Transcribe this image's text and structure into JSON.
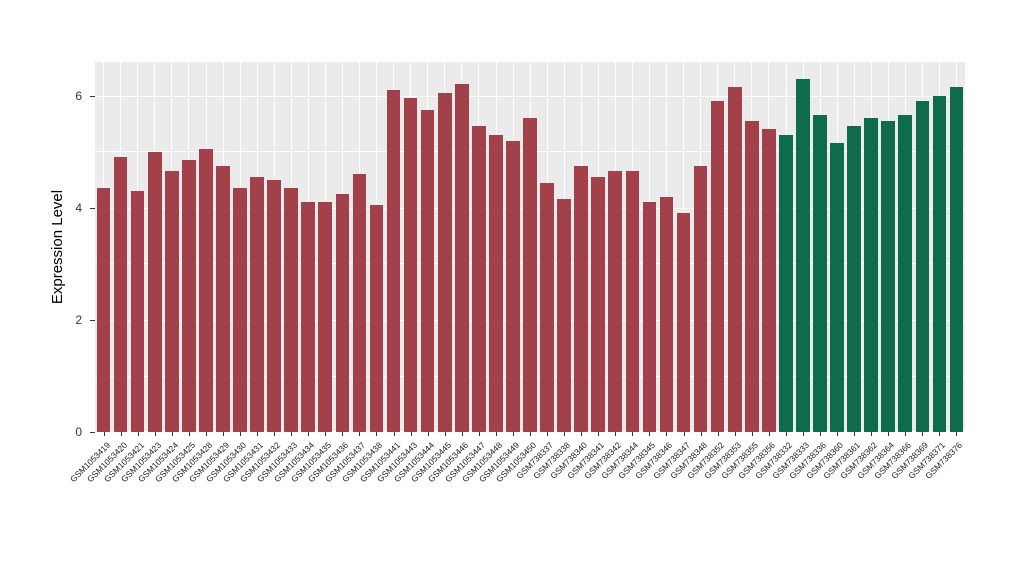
{
  "figure": {
    "background": "#FFFFFF",
    "panel_background": "#EBEBEB",
    "gridline_color": "#FFFFFF",
    "axis_text_color": "#333333",
    "tick_color": "#333333"
  },
  "chart_data": {
    "type": "bar",
    "title": "",
    "xlabel": "",
    "ylabel": "Expression Level",
    "ylim": [
      0,
      6.6
    ],
    "yticks": [
      0,
      2,
      4,
      6
    ],
    "yminor": [
      1,
      3,
      5
    ],
    "grid": true,
    "legend": "none",
    "series": [
      {
        "name": "group-red",
        "color": "#A3414B",
        "categories": [
          "GSM1053419",
          "GSM1053420",
          "GSM1053421",
          "GSM1053423",
          "GSM1053424",
          "GSM1053425",
          "GSM1053428",
          "GSM1053429",
          "GSM1053430",
          "GSM1053431",
          "GSM1053432",
          "GSM1053433",
          "GSM1053434",
          "GSM1053435",
          "GSM1053436",
          "GSM1053437",
          "GSM1053438",
          "GSM1053441",
          "GSM1053443",
          "GSM1053444",
          "GSM1053445",
          "GSM1053446",
          "GSM1053447",
          "GSM1053448",
          "GSM1053449",
          "GSM1053450",
          "GSM738337",
          "GSM738338",
          "GSM738340",
          "GSM738341",
          "GSM738342",
          "GSM738344",
          "GSM738345",
          "GSM738346",
          "GSM738347",
          "GSM738348",
          "GSM738352",
          "GSM738353",
          "GSM738355",
          "GSM738356"
        ],
        "values": [
          4.35,
          4.9,
          4.3,
          5.0,
          4.65,
          4.85,
          5.05,
          4.75,
          4.35,
          4.55,
          4.5,
          4.35,
          4.1,
          4.1,
          4.25,
          4.6,
          4.05,
          6.1,
          5.95,
          5.75,
          6.05,
          6.2,
          5.45,
          5.3,
          5.2,
          5.6,
          4.45,
          4.15,
          4.75,
          4.55,
          4.65,
          4.65,
          4.1,
          4.2,
          3.9,
          4.75,
          5.9,
          6.15,
          5.55,
          5.4
        ]
      },
      {
        "name": "group-green",
        "color": "#0E6B4C",
        "categories": [
          "GSM738332",
          "GSM738333",
          "GSM738336",
          "GSM738360",
          "GSM738361",
          "GSM738362",
          "GSM738364",
          "GSM738366",
          "GSM738369",
          "GSM738371",
          "GSM738376"
        ],
        "values": [
          5.3,
          6.3,
          5.65,
          5.15,
          5.45,
          5.6,
          5.55,
          5.65,
          5.9,
          6.0,
          6.15
        ]
      }
    ]
  }
}
